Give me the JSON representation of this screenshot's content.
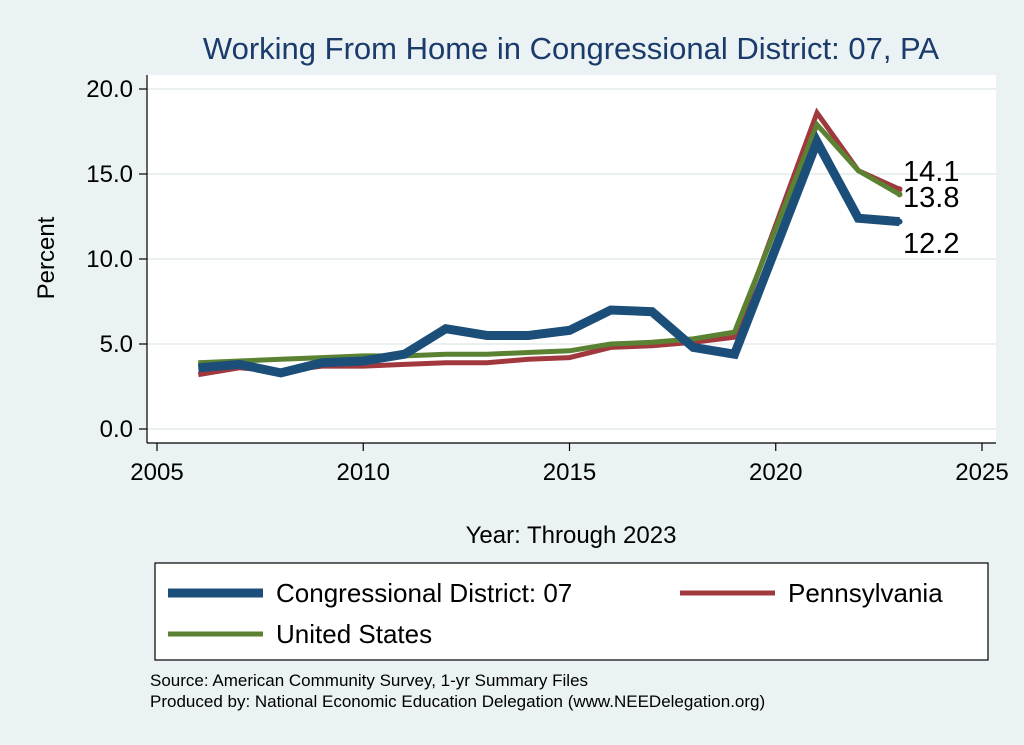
{
  "chart_data": {
    "type": "line",
    "title": "Working From Home in Congressional District: 07, PA",
    "xlabel": "Year: Through 2023",
    "ylabel": "Percent",
    "xlim": [
      2005,
      2025
    ],
    "ylim": [
      0,
      20
    ],
    "xticks": [
      "2005",
      "2010",
      "2015",
      "2020",
      "2025"
    ],
    "yticks": [
      "0.0",
      "5.0",
      "10.0",
      "15.0",
      "20.0"
    ],
    "grid": true,
    "legend_position": "bottom",
    "x": [
      2006,
      2007,
      2008,
      2009,
      2010,
      2011,
      2012,
      2013,
      2014,
      2015,
      2016,
      2017,
      2018,
      2019,
      2021,
      2022,
      2023
    ],
    "series": [
      {
        "name": "Congressional District: 07",
        "color": "#1b4f7a",
        "values": [
          3.6,
          3.8,
          3.3,
          3.9,
          4.0,
          4.4,
          5.9,
          5.5,
          5.5,
          5.8,
          7.0,
          6.9,
          4.8,
          4.4,
          16.9,
          12.4,
          12.2
        ],
        "end_label": "12.2"
      },
      {
        "name": "Pennsylvania",
        "color": "#a0383e",
        "values": [
          3.2,
          3.6,
          3.4,
          3.7,
          3.7,
          3.8,
          3.9,
          3.9,
          4.1,
          4.2,
          4.8,
          4.9,
          5.1,
          5.4,
          18.6,
          15.2,
          14.1
        ],
        "end_label": "14.1"
      },
      {
        "name": "United States",
        "color": "#5b8232",
        "values": [
          3.9,
          4.0,
          4.1,
          4.2,
          4.3,
          4.3,
          4.4,
          4.4,
          4.5,
          4.6,
          5.0,
          5.1,
          5.3,
          5.7,
          17.9,
          15.2,
          13.8
        ],
        "end_label": "13.8"
      }
    ]
  },
  "source_lines": [
    "Source: American Community Survey, 1-yr Summary Files",
    "Produced by: National Economic Education Delegation (www.NEEDelegation.org)"
  ]
}
